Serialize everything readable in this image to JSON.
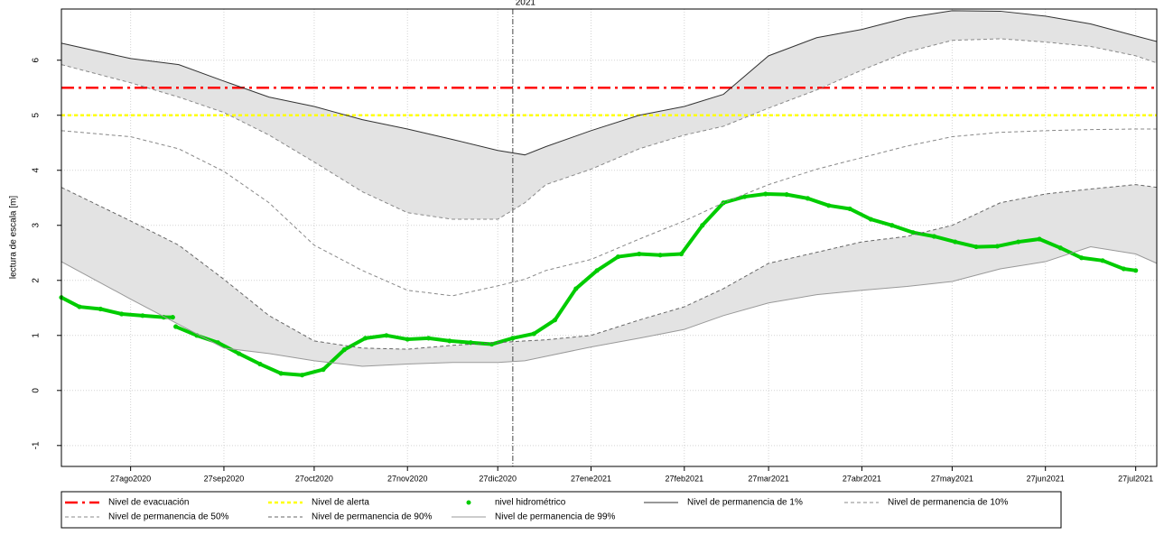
{
  "chart_data": {
    "type": "line",
    "y_label": "lectura de escala [m]",
    "xlim": [
      "2020-08-04",
      "2021-08-03"
    ],
    "ylim": [
      -1.38,
      6.93
    ],
    "yticks": [
      -1,
      0,
      1,
      2,
      3,
      4,
      5,
      6
    ],
    "xticks": [
      {
        "value": "2020-08-27",
        "label": "27ago2020"
      },
      {
        "value": "2020-09-27",
        "label": "27sep2020"
      },
      {
        "value": "2020-10-27",
        "label": "27oct2020"
      },
      {
        "value": "2020-11-27",
        "label": "27nov2020"
      },
      {
        "value": "2020-12-27",
        "label": "27dic2020"
      },
      {
        "value": "2021-01-27",
        "label": "27ene2021"
      },
      {
        "value": "2021-02-27",
        "label": "27feb2021"
      },
      {
        "value": "2021-03-27",
        "label": "27mar2021"
      },
      {
        "value": "2021-04-27",
        "label": "27abr2021"
      },
      {
        "value": "2021-05-27",
        "label": "27may2021"
      },
      {
        "value": "2021-06-27",
        "label": "27jun2021"
      },
      {
        "value": "2021-07-27",
        "label": "27jul2021"
      }
    ],
    "grid": true,
    "vline": {
      "x": "2021-01-01",
      "label": "2021"
    },
    "hlines": [
      {
        "name": "Nivel de evacuación",
        "value": 5.5,
        "color": "#ff0000",
        "dash": "dashdot"
      },
      {
        "name": "Nivel de alerta",
        "value": 5.0,
        "color": "#ffff00",
        "dash": "dashed"
      }
    ],
    "band_color": "#e3e3e3",
    "bands": [
      [
        1,
        2
      ],
      [
        4,
        5
      ]
    ],
    "series": [
      {
        "name": "nivel hidrométrico",
        "color": "#00cc00",
        "style": "points",
        "x": [
          "2020-08-04",
          "2020-08-10",
          "2020-08-17",
          "2020-08-24",
          "2020-08-31",
          "2020-09-07",
          "2020-09-10",
          "2020-09-11",
          "2020-09-11",
          "2020-09-18",
          "2020-09-25",
          "2020-10-02",
          "2020-10-09",
          "2020-10-16",
          "2020-10-23",
          "2020-10-30",
          "2020-11-06",
          "2020-11-13",
          "2020-11-20",
          "2020-11-27",
          "2020-12-04",
          "2020-12-11",
          "2020-12-18",
          "2020-12-25",
          "2021-01-01",
          "2021-01-08",
          "2021-01-15",
          "2021-01-22",
          "2021-01-29",
          "2021-02-05",
          "2021-02-12",
          "2021-02-19",
          "2021-02-26",
          "2021-03-05",
          "2021-03-12",
          "2021-03-19",
          "2021-03-26",
          "2021-04-02",
          "2021-04-09",
          "2021-04-16",
          "2021-04-23",
          "2021-04-30",
          "2021-05-07",
          "2021-05-14",
          "2021-05-21",
          "2021-05-28",
          "2021-06-04",
          "2021-06-11",
          "2021-06-18",
          "2021-06-25",
          "2021-07-02",
          "2021-07-09",
          "2021-07-16",
          "2021-07-23",
          "2021-07-27"
        ],
        "values": [
          1.69,
          1.52,
          1.48,
          1.39,
          1.36,
          1.33,
          1.33,
          null,
          1.16,
          1.0,
          0.87,
          0.67,
          0.48,
          0.31,
          0.28,
          0.38,
          0.74,
          0.95,
          1.0,
          0.93,
          0.95,
          0.9,
          0.87,
          0.84,
          0.95,
          1.03,
          1.28,
          1.85,
          2.18,
          2.43,
          2.48,
          2.46,
          2.48,
          3.0,
          3.41,
          3.52,
          3.57,
          3.56,
          3.49,
          3.36,
          3.3,
          3.11,
          3.0,
          2.87,
          2.8,
          2.7,
          2.61,
          2.62,
          2.7,
          2.75,
          2.59,
          2.41,
          2.36,
          2.21,
          2.18
        ]
      },
      {
        "name": "Nivel de permanencia de 1%",
        "color": "#333333",
        "dash": "solid",
        "x": [
          "2020-08-04",
          "2020-08-27",
          "2020-09-12",
          "2020-09-27",
          "2020-10-12",
          "2020-10-27",
          "2020-11-12",
          "2020-11-27",
          "2020-12-12",
          "2020-12-27",
          "2021-01-05",
          "2021-01-12",
          "2021-01-27",
          "2021-02-12",
          "2021-02-27",
          "2021-03-12",
          "2021-03-27",
          "2021-04-12",
          "2021-04-27",
          "2021-05-12",
          "2021-05-27",
          "2021-06-12",
          "2021-06-27",
          "2021-07-12",
          "2021-07-27",
          "2021-08-03"
        ],
        "values": [
          6.31,
          6.03,
          5.92,
          5.62,
          5.33,
          5.16,
          4.92,
          4.75,
          4.56,
          4.36,
          4.28,
          4.43,
          4.72,
          5.0,
          5.16,
          5.38,
          6.08,
          6.41,
          6.56,
          6.77,
          6.9,
          6.89,
          6.8,
          6.66,
          6.44,
          6.34
        ]
      },
      {
        "name": "Nivel de permanencia de 10%",
        "color": "#888888",
        "dash": "dashed",
        "x": [
          "2020-08-04",
          "2020-08-27",
          "2020-09-12",
          "2020-09-27",
          "2020-10-12",
          "2020-10-27",
          "2020-11-12",
          "2020-11-27",
          "2020-12-12",
          "2020-12-27",
          "2021-01-05",
          "2021-01-12",
          "2021-01-27",
          "2021-02-12",
          "2021-02-27",
          "2021-03-12",
          "2021-03-27",
          "2021-04-12",
          "2021-04-27",
          "2021-05-12",
          "2021-05-27",
          "2021-06-12",
          "2021-06-27",
          "2021-07-12",
          "2021-07-27",
          "2021-08-03"
        ],
        "values": [
          5.92,
          5.59,
          5.33,
          5.05,
          4.64,
          4.15,
          3.61,
          3.23,
          3.11,
          3.11,
          3.41,
          3.74,
          4.02,
          4.39,
          4.64,
          4.8,
          5.13,
          5.46,
          5.82,
          6.15,
          6.36,
          6.39,
          6.33,
          6.25,
          6.08,
          5.95
        ]
      },
      {
        "name": "Nivel de permanencia de 50%",
        "color": "#888888",
        "dash": "dashed",
        "x": [
          "2020-08-04",
          "2020-08-27",
          "2020-09-12",
          "2020-09-27",
          "2020-10-12",
          "2020-10-27",
          "2020-11-12",
          "2020-11-27",
          "2020-12-12",
          "2020-12-27",
          "2021-01-05",
          "2021-01-12",
          "2021-01-27",
          "2021-02-12",
          "2021-02-27",
          "2021-03-12",
          "2021-03-27",
          "2021-04-12",
          "2021-04-27",
          "2021-05-12",
          "2021-05-27",
          "2021-06-12",
          "2021-06-27",
          "2021-07-12",
          "2021-07-27",
          "2021-08-03"
        ],
        "values": [
          4.72,
          4.61,
          4.39,
          3.98,
          3.41,
          2.64,
          2.18,
          1.82,
          1.72,
          1.9,
          2.02,
          2.18,
          2.38,
          2.75,
          3.08,
          3.41,
          3.74,
          4.02,
          4.23,
          4.44,
          4.61,
          4.69,
          4.72,
          4.74,
          4.75,
          4.75
        ]
      },
      {
        "name": "Nivel de permanencia de 90%",
        "color": "#666666",
        "dash": "dashed",
        "x": [
          "2020-08-04",
          "2020-08-27",
          "2020-09-12",
          "2020-09-27",
          "2020-10-12",
          "2020-10-27",
          "2020-11-12",
          "2020-11-27",
          "2020-12-12",
          "2020-12-27",
          "2021-01-05",
          "2021-01-12",
          "2021-01-27",
          "2021-02-12",
          "2021-02-27",
          "2021-03-12",
          "2021-03-27",
          "2021-04-12",
          "2021-04-27",
          "2021-05-12",
          "2021-05-27",
          "2021-06-12",
          "2021-06-27",
          "2021-07-12",
          "2021-07-27",
          "2021-08-03"
        ],
        "values": [
          3.69,
          3.08,
          2.64,
          2.02,
          1.36,
          0.9,
          0.77,
          0.75,
          0.82,
          0.87,
          0.9,
          0.92,
          1.0,
          1.28,
          1.52,
          1.85,
          2.31,
          2.51,
          2.7,
          2.8,
          3.0,
          3.41,
          3.57,
          3.66,
          3.74,
          3.69
        ]
      },
      {
        "name": "Nivel de permanencia de 99%",
        "color": "#999999",
        "dash": "solid",
        "x": [
          "2020-08-04",
          "2020-08-27",
          "2020-09-12",
          "2020-09-27",
          "2020-10-12",
          "2020-10-27",
          "2020-11-12",
          "2020-11-27",
          "2020-12-12",
          "2020-12-27",
          "2021-01-05",
          "2021-01-12",
          "2021-01-27",
          "2021-02-12",
          "2021-02-27",
          "2021-03-12",
          "2021-03-27",
          "2021-04-12",
          "2021-04-27",
          "2021-05-12",
          "2021-05-27",
          "2021-06-12",
          "2021-06-27",
          "2021-07-12",
          "2021-07-27",
          "2021-08-03"
        ],
        "values": [
          2.34,
          1.66,
          1.2,
          0.77,
          0.67,
          0.54,
          0.44,
          0.48,
          0.51,
          0.51,
          0.54,
          0.62,
          0.79,
          0.95,
          1.11,
          1.36,
          1.59,
          1.74,
          1.82,
          1.89,
          1.98,
          2.21,
          2.34,
          2.61,
          2.48,
          2.31
        ]
      }
    ]
  }
}
